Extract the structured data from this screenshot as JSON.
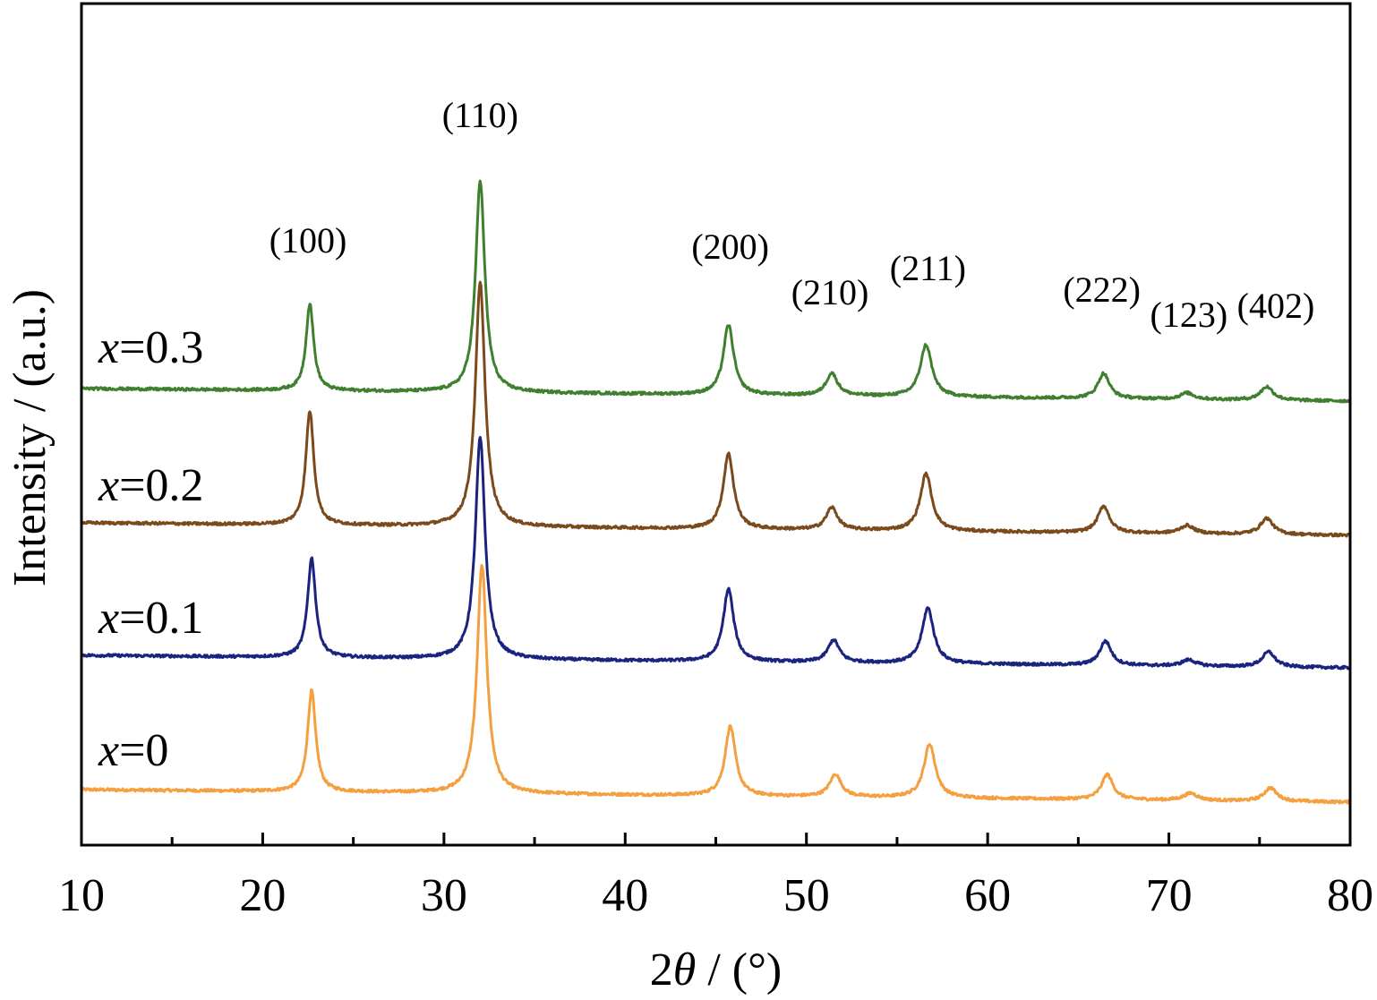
{
  "chart_data": {
    "type": "line",
    "xlabel_prefix": "2",
    "xlabel_symbol": "θ",
    "xlabel_suffix": " / (°)",
    "ylabel": "Intensity / (a.u.)",
    "xlim": [
      10,
      80
    ],
    "x_ticks": [
      10,
      20,
      30,
      40,
      50,
      60,
      70,
      80
    ],
    "y_tick_labels": false,
    "series": [
      {
        "name": "x=0",
        "name_var": "x",
        "name_value": "=0",
        "color": "#f4a040",
        "offset": 0,
        "baseline": 5,
        "slope": -0.002,
        "peaks": [
          {
            "pos": 22.7,
            "h": 113,
            "w": 0.35
          },
          {
            "pos": 32.1,
            "h": 255,
            "w": 0.42
          },
          {
            "pos": 45.8,
            "h": 78,
            "w": 0.45
          },
          {
            "pos": 51.6,
            "h": 25,
            "w": 0.5
          },
          {
            "pos": 56.8,
            "h": 60,
            "w": 0.5
          },
          {
            "pos": 66.6,
            "h": 28,
            "w": 0.5
          },
          {
            "pos": 71.2,
            "h": 8,
            "w": 0.6
          },
          {
            "pos": 75.6,
            "h": 15,
            "w": 0.55
          }
        ]
      },
      {
        "name": "x=0.1",
        "name_var": "x",
        "name_value": "=0.1",
        "color": "#1a237e",
        "offset": 150,
        "baseline": 5,
        "slope": -0.002,
        "peaks": [
          {
            "pos": 22.7,
            "h": 111,
            "w": 0.35
          },
          {
            "pos": 32.0,
            "h": 247,
            "w": 0.42
          },
          {
            "pos": 45.7,
            "h": 81,
            "w": 0.45
          },
          {
            "pos": 51.5,
            "h": 25,
            "w": 0.5
          },
          {
            "pos": 56.7,
            "h": 62,
            "w": 0.5
          },
          {
            "pos": 66.5,
            "h": 27,
            "w": 0.5
          },
          {
            "pos": 71.1,
            "h": 7,
            "w": 0.6
          },
          {
            "pos": 75.5,
            "h": 17,
            "w": 0.55
          }
        ]
      },
      {
        "name": "x=0.2",
        "name_var": "x",
        "name_value": "=0.2",
        "color": "#7b4a1c",
        "offset": 298,
        "baseline": 5,
        "slope": -0.002,
        "peaks": [
          {
            "pos": 22.6,
            "h": 127,
            "w": 0.35
          },
          {
            "pos": 32.0,
            "h": 272,
            "w": 0.42
          },
          {
            "pos": 45.7,
            "h": 84,
            "w": 0.45
          },
          {
            "pos": 51.4,
            "h": 25,
            "w": 0.5
          },
          {
            "pos": 56.6,
            "h": 64,
            "w": 0.5
          },
          {
            "pos": 66.4,
            "h": 30,
            "w": 0.5
          },
          {
            "pos": 71.0,
            "h": 9,
            "w": 0.6
          },
          {
            "pos": 75.4,
            "h": 18,
            "w": 0.55
          }
        ]
      },
      {
        "name": "x=0.3",
        "name_var": "x",
        "name_value": "=0.3",
        "color": "#3f7f2f",
        "offset": 448,
        "baseline": 5,
        "slope": -0.002,
        "peaks": [
          {
            "pos": 22.6,
            "h": 97,
            "w": 0.33
          },
          {
            "pos": 32.0,
            "h": 236,
            "w": 0.4
          },
          {
            "pos": 45.7,
            "h": 78,
            "w": 0.45
          },
          {
            "pos": 51.4,
            "h": 25,
            "w": 0.5
          },
          {
            "pos": 56.6,
            "h": 58,
            "w": 0.5
          },
          {
            "pos": 66.4,
            "h": 28,
            "w": 0.5
          },
          {
            "pos": 71.0,
            "h": 7,
            "w": 0.6
          },
          {
            "pos": 75.4,
            "h": 15,
            "w": 0.55
          }
        ]
      }
    ],
    "annotations": [
      {
        "text": "(100)",
        "x": 22.5,
        "y": 605
      },
      {
        "text": "(110)",
        "x": 32.0,
        "y": 745
      },
      {
        "text": "(200)",
        "x": 45.8,
        "y": 598
      },
      {
        "text": "(210)",
        "x": 51.3,
        "y": 547
      },
      {
        "text": "(211)",
        "x": 56.7,
        "y": 574
      },
      {
        "text": "(222)",
        "x": 66.3,
        "y": 550
      },
      {
        "text": "(123)",
        "x": 71.1,
        "y": 522
      },
      {
        "text": "(402)",
        "x": 75.9,
        "y": 532
      }
    ]
  }
}
